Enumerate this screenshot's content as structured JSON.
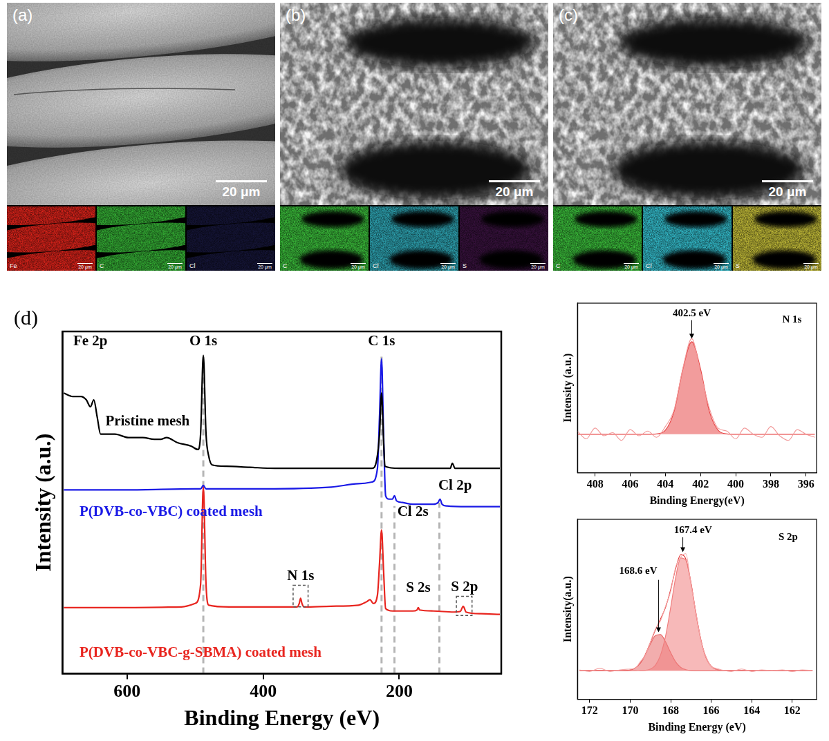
{
  "panels": [
    {
      "label": "(a)",
      "scale_bar": "20 μm",
      "maps": [
        {
          "element": "Fe",
          "color": "#e3241b",
          "scale_bar": "20 μm"
        },
        {
          "element": "C",
          "color": "#36b436",
          "scale_bar": "20 μm"
        },
        {
          "element": "Cl",
          "color": "#16163a",
          "scale_bar": "20 μm"
        }
      ]
    },
    {
      "label": "(b)",
      "scale_bar": "20 μm",
      "maps": [
        {
          "element": "C",
          "color": "#3cc23c",
          "scale_bar": "20 μm"
        },
        {
          "element": "Cl",
          "color": "#2fa9b8",
          "scale_bar": "20 μm"
        },
        {
          "element": "S",
          "color": "#3a1240",
          "scale_bar": "20 μm"
        }
      ]
    },
    {
      "label": "(c)",
      "scale_bar": "20 μm",
      "maps": [
        {
          "element": "C",
          "color": "#3cc23c",
          "scale_bar": "20 μm"
        },
        {
          "element": "Cl",
          "color": "#35c2d2",
          "scale_bar": "20 μm"
        },
        {
          "element": "S",
          "color": "#c9c23a",
          "scale_bar": "20 μm"
        }
      ]
    }
  ],
  "chart_data": [
    {
      "type": "line",
      "label": "(d)",
      "x_label": "Binding Energy (eV)",
      "y_label": "Intensity (a.u.)",
      "xlim": [
        695,
        50
      ],
      "xticks": [
        600,
        400,
        200
      ],
      "ylim": [
        0,
        100
      ],
      "tick_labels": "x",
      "grid": false,
      "series": [
        {
          "name": "Pristine mesh",
          "color": "#000000",
          "name_position": [
            632,
            71.5
          ],
          "x": [
            693,
            680,
            668,
            660,
            654,
            649,
            644,
            639,
            630,
            618,
            598,
            577,
            560,
            550,
            542,
            526,
            506,
            496,
            492,
            488,
            484,
            480,
            475,
            454,
            420,
            383,
            330,
            280,
            240,
            233,
            229,
            226,
            223,
            221,
            200,
            179,
            140,
            125,
            122,
            118,
            90,
            52
          ],
          "values": [
            82,
            81,
            81,
            80,
            78,
            80,
            75,
            70,
            70,
            70,
            69,
            69,
            68.5,
            68.5,
            69,
            67.5,
            66.5,
            65.5,
            70,
            93,
            70,
            63.5,
            61,
            60.6,
            60.3,
            60,
            60,
            60,
            60,
            62.6,
            70,
            82,
            68,
            60.6,
            60,
            60,
            60,
            60,
            61.5,
            60,
            60,
            60
          ]
        },
        {
          "name": "P(DVB-co-VBC) coated mesh",
          "color": "#1a1ae6",
          "name_position": [
            670,
            45
          ],
          "x": [
            693,
            600,
            500,
            492,
            488,
            484,
            400,
            300,
            260,
            240,
            232,
            229,
            226,
            223,
            220,
            215,
            210,
            207,
            204,
            195,
            180,
            150,
            143,
            140,
            137,
            130,
            100,
            52
          ],
          "values": [
            53.7,
            53.7,
            54,
            54,
            55,
            54,
            54,
            54.5,
            55.5,
            56,
            60,
            75,
            92,
            70,
            52,
            51,
            51,
            52,
            50.5,
            50,
            49.5,
            49.5,
            50,
            51,
            49.5,
            49,
            48.8,
            48.8
          ]
        },
        {
          "name": "P(DVB-co-VBC-g-SBMA) coated mesh",
          "color": "#e8251f",
          "name_position": [
            670,
            4
          ],
          "x": [
            693,
            600,
            520,
            500,
            492,
            488,
            484,
            480,
            450,
            400,
            350,
            347,
            345,
            343,
            340,
            300,
            260,
            248,
            243,
            238,
            232,
            229,
            226,
            223,
            220,
            210,
            180,
            174,
            172,
            170,
            150,
            120,
            110,
            108,
            106,
            104,
            102,
            80,
            52
          ],
          "values": [
            19.3,
            19.3,
            19.5,
            20.5,
            26,
            54.7,
            26,
            20,
            19.5,
            19.5,
            19.5,
            20.5,
            22,
            20.5,
            19.5,
            19.7,
            20,
            21,
            21.6,
            20.5,
            23,
            32,
            42,
            30,
            19,
            18.3,
            18.3,
            18.6,
            19.3,
            18.6,
            18.3,
            18,
            18.2,
            19,
            19.7,
            19,
            18,
            17.5,
            17.3
          ]
        }
      ],
      "ref_lines": [
        {
          "x": 488,
          "y": [
            0,
            93
          ]
        },
        {
          "x": 226,
          "y": [
            0,
            93
          ]
        },
        {
          "x": 207,
          "y": [
            0,
            49
          ]
        },
        {
          "x": 141,
          "y": [
            0,
            50
          ]
        }
      ],
      "boxes": [
        {
          "x": [
            356,
            334
          ],
          "y": [
            19.5,
            25.8
          ]
        },
        {
          "x": [
            116,
            93
          ],
          "y": [
            17,
            22.6
          ]
        }
      ],
      "annotations": [
        {
          "text": "Fe 2p",
          "x": 654,
          "y": 95
        },
        {
          "text": "O 1s",
          "x": 488,
          "y": 95
        },
        {
          "text": "C 1s",
          "x": 226,
          "y": 95
        },
        {
          "text": "Cl 2s",
          "x": 180,
          "y": 45
        },
        {
          "text": "Cl 2p",
          "x": 118,
          "y": 52.8
        },
        {
          "text": "N 1s",
          "x": 345,
          "y": 26.4
        },
        {
          "text": "S 2s",
          "x": 172,
          "y": 22.8
        },
        {
          "text": "S 2p",
          "x": 104,
          "y": 23
        }
      ]
    },
    {
      "type": "line",
      "x_label": "Binding Energy(eV)",
      "y_label": "Intensity (a.u.)",
      "xlim": [
        409,
        395.4
      ],
      "xticks": [
        408,
        406,
        404,
        402,
        400,
        398,
        396
      ],
      "ylim": [
        0,
        110
      ],
      "tick_labels": "x",
      "grid": false,
      "series": [
        {
          "type": "line",
          "color": "#f29a9a",
          "x": [
            409,
            408.5,
            408,
            407.5,
            407,
            406.5,
            406,
            405.5,
            405,
            404.5,
            404,
            403.5,
            403,
            402.5,
            402,
            401.5,
            401,
            400.5,
            400,
            399.5,
            399,
            398.5,
            398,
            397.5,
            397,
            396.5,
            396,
            395.5
          ],
          "values": [
            27,
            22,
            29,
            24,
            26,
            21,
            28,
            24,
            27,
            23,
            30,
            41,
            68,
            87,
            65,
            42,
            29,
            27,
            22,
            29,
            25,
            23,
            30,
            24,
            21,
            28,
            25,
            23
          ]
        },
        {
          "type": "area",
          "color": "#e84a4a",
          "x": [
            409,
            406,
            405,
            404.5,
            404,
            403.5,
            403,
            402.5,
            402,
            401.5,
            401,
            400.5,
            400,
            397,
            395.5
          ],
          "values": [
            25,
            25,
            25,
            25.2,
            27.6,
            40,
            67.4,
            85,
            67.4,
            40,
            27.6,
            25.2,
            25,
            25,
            25
          ]
        }
      ],
      "annotations": [
        {
          "text": "N 1s",
          "x": 396.8,
          "y": 96
        },
        {
          "text": "402.5 eV",
          "x": 402.5,
          "y": 100
        }
      ],
      "arrows": [
        {
          "x": 402.5,
          "y": [
            99,
            87
          ]
        }
      ]
    },
    {
      "type": "line",
      "x_label": "Binding Energy (eV)",
      "y_label": "Intensity(a.u.)",
      "xlim": [
        172.6,
        160.8
      ],
      "xticks": [
        172,
        170,
        168,
        166,
        164,
        162
      ],
      "ylim": [
        0,
        110
      ],
      "tick_labels": "x",
      "grid": false,
      "series": [
        {
          "type": "line",
          "color": "#f4a6a6",
          "x": [
            172.5,
            172,
            171.5,
            171,
            170.5,
            170,
            169.75,
            169.5,
            169.25,
            169,
            168.75,
            168.5,
            168.25,
            168,
            167.75,
            167.5,
            167.25,
            167,
            166.75,
            166.5,
            166.25,
            166,
            165.75,
            165.5,
            165,
            164.5,
            164,
            163.5,
            163,
            162.5,
            162,
            161.5,
            161
          ],
          "values": [
            18,
            17,
            19,
            17,
            18,
            18.5,
            19,
            23,
            27,
            35,
            43,
            48,
            57,
            66,
            81,
            87,
            89,
            70,
            53,
            35,
            26,
            20,
            19,
            18,
            17,
            18.5,
            17,
            18,
            17.5,
            18,
            17,
            18,
            17.5
          ]
        },
        {
          "type": "area",
          "color": "#f07f7f",
          "x": [
            172.5,
            171,
            170,
            169.75,
            169.5,
            169.25,
            169,
            168.75,
            168.5,
            168.25,
            168,
            167.75,
            167.5,
            167.25,
            167,
            166.75,
            166.5,
            166.25,
            166,
            165.75,
            165.5,
            165,
            163,
            161
          ],
          "values": [
            17.5,
            17.5,
            17.5,
            17.5,
            17.6,
            17.7,
            18.5,
            20.9,
            27,
            38.7,
            56.1,
            74.7,
            86.4,
            85,
            71.2,
            52.3,
            35.9,
            25.3,
            20.2,
            18.3,
            17.7,
            17.5,
            17.5,
            17.5
          ]
        },
        {
          "type": "area",
          "color": "#e86a6a",
          "x": [
            172.5,
            171,
            170.5,
            170,
            169.75,
            169.5,
            169.25,
            169,
            168.75,
            168.5,
            168.25,
            168,
            167.75,
            167.5,
            167.25,
            167,
            166.5,
            165,
            161
          ],
          "values": [
            17.5,
            17.5,
            17.5,
            17.9,
            19.1,
            22,
            27.2,
            33.8,
            39,
            39.6,
            35.1,
            28.5,
            22.8,
            19.5,
            18.1,
            17.6,
            17.5,
            17.5,
            17.5
          ]
        },
        {
          "type": "line",
          "color": "#e03030",
          "x": [
            172.5,
            171,
            170.5,
            170,
            169.75,
            169.5,
            169.25,
            169,
            168.75,
            168.5,
            168.25,
            168,
            167.75,
            167.5,
            167.25,
            167,
            166.75,
            166.5,
            166.25,
            166,
            165.75,
            165.5,
            165,
            163,
            161
          ],
          "values": [
            17.5,
            17.5,
            17.5,
            17.9,
            19.1,
            22.1,
            27.4,
            34.8,
            42.4,
            49.1,
            56.3,
            67.1,
            80,
            88.4,
            85.6,
            71.3,
            52.3,
            35.9,
            25.3,
            20.2,
            18.3,
            17.7,
            17.5,
            17.5,
            17.5
          ]
        }
      ],
      "annotations": [
        {
          "text": "S 2p",
          "x": 162.2,
          "y": 96
        },
        {
          "text": "167.4 eV",
          "x": 166.9,
          "y": 100
        },
        {
          "text": "168.6 eV",
          "x": 169.6,
          "y": 75
        }
      ],
      "arrows": [
        {
          "x": 167.4,
          "y": [
            99,
            90
          ]
        },
        {
          "x": 168.6,
          "y": [
            73,
            41
          ]
        }
      ]
    }
  ]
}
